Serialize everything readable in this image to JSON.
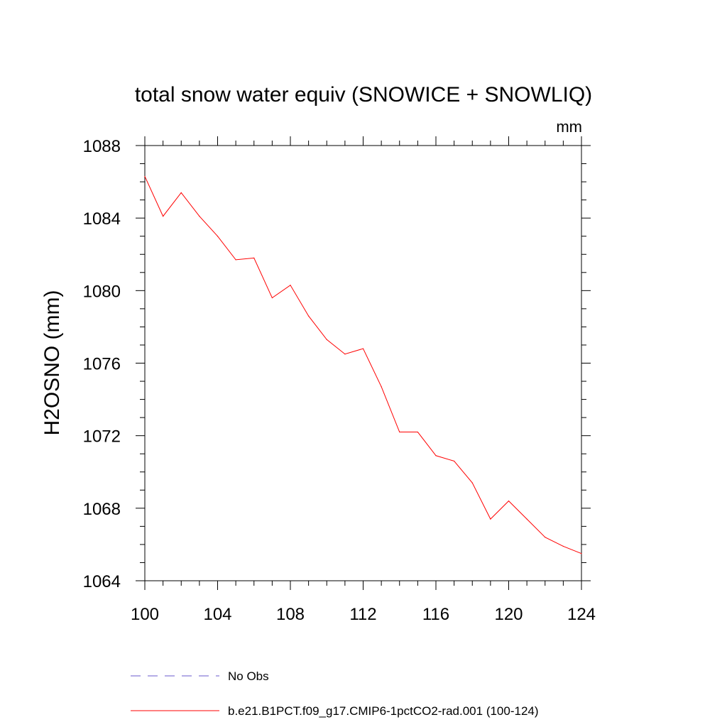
{
  "chart_data": {
    "type": "line",
    "title": "total snow water equiv (SNOWICE + SNOWLIQ)",
    "units_label": "mm",
    "ylabel": "H2OSNO  (mm)",
    "xlabel": "",
    "xlim": [
      100,
      124
    ],
    "ylim": [
      1064,
      1088
    ],
    "x_ticks": [
      100,
      104,
      108,
      112,
      116,
      120,
      124
    ],
    "y_ticks": [
      1064,
      1068,
      1072,
      1076,
      1080,
      1084,
      1088
    ],
    "grid": false,
    "series": [
      {
        "name": "b.e21.B1PCT.f09_g17.CMIP6-1pctCO2-rad.001 (100-124)",
        "color": "#ff0000",
        "style": "solid",
        "x": [
          100,
          101,
          102,
          103,
          104,
          105,
          106,
          107,
          108,
          109,
          110,
          111,
          112,
          113,
          114,
          115,
          116,
          117,
          118,
          119,
          120,
          121,
          122,
          123,
          124
        ],
        "y": [
          1086.3,
          1084.1,
          1085.4,
          1084.1,
          1083.0,
          1081.7,
          1081.8,
          1079.6,
          1080.3,
          1078.6,
          1077.3,
          1076.5,
          1076.8,
          1074.7,
          1072.2,
          1072.2,
          1070.9,
          1070.6,
          1069.4,
          1067.4,
          1068.4,
          1067.4,
          1066.4,
          1065.9,
          1065.5
        ]
      }
    ],
    "legend": {
      "placement": "bottom",
      "entries": [
        {
          "label": "No Obs",
          "color": "#6a5acd",
          "style": "dashed"
        },
        {
          "label": "b.e21.B1PCT.f09_g17.CMIP6-1pctCO2-rad.001 (100-124)",
          "color": "#ff0000",
          "style": "solid"
        }
      ]
    }
  }
}
